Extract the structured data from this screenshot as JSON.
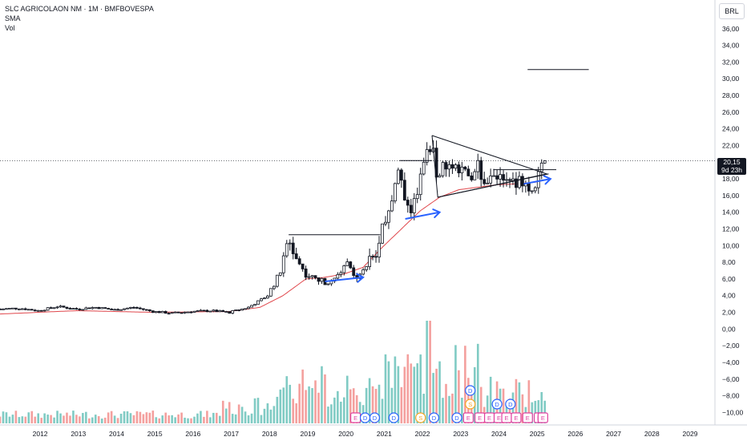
{
  "legend": {
    "symbol": "SLC AGRICOLAON NM · 1M · BMFBOVESPA",
    "sma": "SMA",
    "vol": "Vol"
  },
  "currency_button": "BRL",
  "last_price": {
    "value": "20,15",
    "countdown": "9d 23h"
  },
  "colors": {
    "up": "#26a69a",
    "down": "#ef5350",
    "candle": "#131722",
    "sma": "#e0474c",
    "arrow": "#2962ff",
    "grid": "#e0e3eb"
  },
  "chart_data": {
    "type": "candlestick",
    "x_axis": {
      "ticks": [
        "2012",
        "2013",
        "2014",
        "2015",
        "2016",
        "2017",
        "2018",
        "2019",
        "2020",
        "2021",
        "2022",
        "2023",
        "2024",
        "2025",
        "2026",
        "2027",
        "2028",
        "2029"
      ],
      "range": [
        2011.0,
        2029.7
      ]
    },
    "y_axis": {
      "ticks": [
        "36,00",
        "34,00",
        "32,00",
        "30,00",
        "28,00",
        "26,00",
        "24,00",
        "22,00",
        "20,00",
        "18,00",
        "16,00",
        "14,00",
        "12,00",
        "10,00",
        "8,00",
        "6,00",
        "4,00",
        "2,00",
        "0,00",
        "−2,00",
        "−4,00",
        "−6,00",
        "−8,00",
        "−10,00"
      ],
      "range": [
        -11.5,
        38
      ]
    },
    "price_anchors": [
      [
        2011.0,
        2.4
      ],
      [
        2011.5,
        2.5
      ],
      [
        2012.0,
        2.2
      ],
      [
        2012.5,
        2.7
      ],
      [
        2013.0,
        2.4
      ],
      [
        2013.5,
        2.6
      ],
      [
        2014.0,
        2.3
      ],
      [
        2014.5,
        2.6
      ],
      [
        2015.0,
        2.1
      ],
      [
        2015.5,
        1.9
      ],
      [
        2016.0,
        2.1
      ],
      [
        2016.5,
        2.2
      ],
      [
        2017.0,
        2.0
      ],
      [
        2017.5,
        2.6
      ],
      [
        2018.0,
        4.0
      ],
      [
        2018.35,
        7.0
      ],
      [
        2018.55,
        10.8
      ],
      [
        2018.75,
        8.5
      ],
      [
        2019.0,
        6.5
      ],
      [
        2019.5,
        5.6
      ],
      [
        2019.9,
        6.4
      ],
      [
        2020.05,
        8.0
      ],
      [
        2020.3,
        6.2
      ],
      [
        2020.6,
        7.8
      ],
      [
        2020.9,
        9.5
      ],
      [
        2021.05,
        13.0
      ],
      [
        2021.35,
        17.5
      ],
      [
        2021.45,
        20.2
      ],
      [
        2021.6,
        15.5
      ],
      [
        2021.75,
        13.5
      ],
      [
        2021.9,
        16.0
      ],
      [
        2022.1,
        20.5
      ],
      [
        2022.3,
        22.2
      ],
      [
        2022.45,
        17.5
      ],
      [
        2022.6,
        20.2
      ],
      [
        2022.8,
        18.5
      ],
      [
        2023.1,
        20.0
      ],
      [
        2023.3,
        17.0
      ],
      [
        2023.5,
        19.5
      ],
      [
        2023.7,
        17.6
      ],
      [
        2024.0,
        18.5
      ],
      [
        2024.3,
        17.2
      ],
      [
        2024.6,
        18.0
      ],
      [
        2024.9,
        16.8
      ],
      [
        2025.1,
        18.3
      ],
      [
        2025.25,
        20.15
      ]
    ],
    "sma_anchors": [
      [
        2011.0,
        1.8
      ],
      [
        2013.0,
        2.2
      ],
      [
        2015.0,
        2.0
      ],
      [
        2017.0,
        2.1
      ],
      [
        2017.8,
        2.6
      ],
      [
        2018.4,
        4.0
      ],
      [
        2019.0,
        6.0
      ],
      [
        2019.5,
        6.2
      ],
      [
        2020.0,
        6.6
      ],
      [
        2020.5,
        7.4
      ],
      [
        2021.0,
        9.8
      ],
      [
        2021.5,
        12.0
      ],
      [
        2022.0,
        14.2
      ],
      [
        2022.5,
        15.8
      ],
      [
        2023.0,
        16.7
      ],
      [
        2023.5,
        17.0
      ],
      [
        2024.0,
        17.3
      ],
      [
        2024.5,
        17.4
      ],
      [
        2025.0,
        17.6
      ],
      [
        2025.3,
        17.9
      ]
    ],
    "annotations": {
      "horizontal_lines": [
        [
          2018.55,
          2020.95,
          11.3
        ],
        [
          2021.45,
          2022.3,
          20.2
        ],
        [
          2023.9,
          2025.55,
          19.1
        ],
        [
          2024.8,
          2026.4,
          31.1
        ]
      ],
      "triangle": [
        [
          2022.3,
          23.2
        ],
        [
          2025.3,
          18.6
        ],
        [
          2022.45,
          15.8
        ]
      ],
      "arrows": [
        [
          2019.5,
          5.7,
          2020.5,
          6.2
        ],
        [
          2021.6,
          13.2,
          2022.5,
          14.0
        ],
        [
          2024.7,
          17.4,
          2025.4,
          18.0
        ]
      ]
    },
    "events": [
      {
        "type": "E",
        "x": 2020.3
      },
      {
        "type": "D",
        "x": 2020.55
      },
      {
        "type": "D",
        "x": 2020.8
      },
      {
        "type": "D",
        "x": 2021.3
      },
      {
        "type": "S",
        "x": 2022.0
      },
      {
        "type": "D",
        "x": 2022.35
      },
      {
        "type": "D",
        "x": 2022.95
      },
      {
        "type": "E",
        "x": 2023.25
      },
      {
        "type": "S",
        "x": 2023.3,
        "level": 1
      },
      {
        "type": "D",
        "x": 2023.3,
        "level": 2
      },
      {
        "type": "E",
        "x": 2023.55
      },
      {
        "type": "E",
        "x": 2023.8
      },
      {
        "type": "E",
        "x": 2024.05
      },
      {
        "type": "D",
        "x": 2024.0,
        "level": 1
      },
      {
        "type": "E",
        "x": 2024.25
      },
      {
        "type": "E",
        "x": 2024.5
      },
      {
        "type": "D",
        "x": 2024.35,
        "level": 1
      },
      {
        "type": "E",
        "x": 2024.8
      },
      {
        "type": "E",
        "x": 2025.1
      },
      {
        "type": "E",
        "x": 2025.2
      }
    ]
  }
}
